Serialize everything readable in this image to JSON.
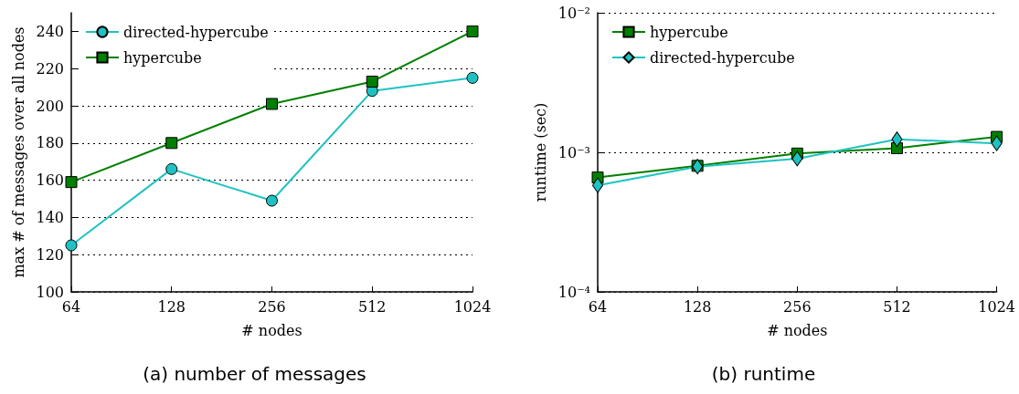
{
  "chart_data": [
    {
      "type": "line",
      "xlabel": "# nodes",
      "ylabel": "max # of messages over all nodes",
      "log": "x",
      "x": [
        64,
        128,
        256,
        512,
        1024
      ],
      "xlim": [
        64,
        1024
      ],
      "xticks": [
        64,
        128,
        256,
        512,
        1024
      ],
      "ylim": [
        100,
        250
      ],
      "yticks": [
        100,
        120,
        140,
        160,
        180,
        200,
        220,
        240
      ],
      "grid": "y",
      "legend": "top left",
      "line_style": "solid",
      "annotations": [
        "(a) number of messages"
      ],
      "series": [
        {
          "name": "directed-hypercube",
          "color": "#1fc2c2",
          "marker": "circle",
          "values": [
            125,
            166,
            149,
            208,
            215
          ]
        },
        {
          "name": "hypercube",
          "color": "#007f00",
          "marker": "square",
          "values": [
            159,
            180,
            201,
            213,
            240
          ]
        }
      ]
    },
    {
      "type": "line",
      "xlabel": "# nodes",
      "ylabel": "runtime (sec)",
      "log": "xy",
      "x": [
        64,
        128,
        256,
        512,
        1024
      ],
      "xlim": [
        64,
        1024
      ],
      "xticks": [
        64,
        128,
        256,
        512,
        1024
      ],
      "ylim": [
        0.0001,
        0.01
      ],
      "yticks": [
        {
          "value": 0.0001,
          "label": "10⁻⁴"
        },
        {
          "value": 0.001,
          "label": "10⁻³"
        },
        {
          "value": 0.01,
          "label": "10⁻²"
        }
      ],
      "grid": "y",
      "legend": "top left",
      "line_style": "solid",
      "annotations": [
        "(b) runtime"
      ],
      "series": [
        {
          "name": "hypercube",
          "color": "#007f00",
          "marker": "square",
          "values": [
            0.00066,
            0.0008,
            0.00098,
            0.00107,
            0.00129
          ]
        },
        {
          "name": "directed-hypercube",
          "color": "#1fc2c2",
          "marker": "diamond",
          "values": [
            0.00058,
            0.00079,
            0.0009,
            0.00124,
            0.00116
          ]
        }
      ]
    }
  ]
}
